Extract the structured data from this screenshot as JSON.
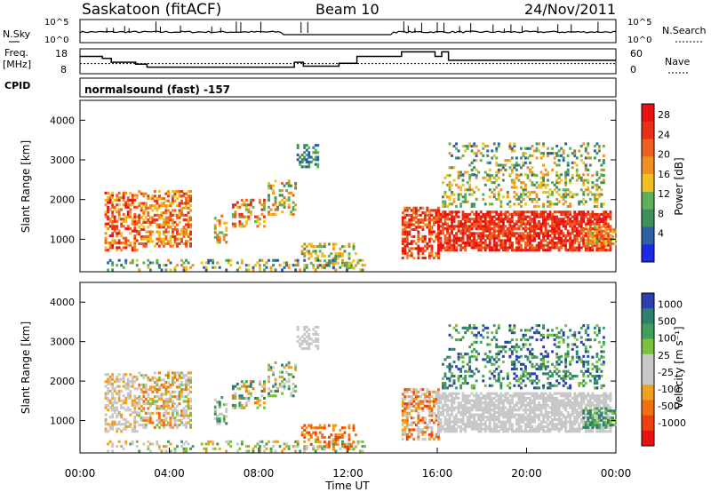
{
  "header": {
    "station": "Saskatoon (fitACF)",
    "beam": "Beam 10",
    "date": "24/Nov/2011"
  },
  "panel_labels": {
    "nsky": "N.Sky",
    "nsearch": "N.Search",
    "freq_line1": "Freq.",
    "freq_line2": "[MHz]",
    "nave": "Nave",
    "cpid": "CPID",
    "cpid_value": "normalsound (fast) -157"
  },
  "colors": {
    "power_scale": [
      "#1a2be6",
      "#2b5fa6",
      "#3f8f5f",
      "#5fb05a",
      "#f0c020",
      "#f09020",
      "#f06020",
      "#e83018",
      "#e81010"
    ],
    "velocity_scale": [
      "#e81010",
      "#f04010",
      "#f07010",
      "#f0a020",
      "#c8c8c8",
      "#c8c8c8",
      "#7cc040",
      "#3f9f5f",
      "#2f7f6f",
      "#2a3fb0"
    ],
    "grey": "#c8c8c8"
  },
  "chart_data": [
    {
      "type": "line",
      "name": "noise",
      "left_scale_ticks": [
        "10^5",
        "10^0"
      ],
      "right_scale_ticks": [
        "10^5",
        "10^0"
      ],
      "left_label": "N.Sky",
      "right_label": "N.Search",
      "xlim": [
        0,
        24
      ]
    },
    {
      "type": "line",
      "name": "frequency-nave",
      "left_ticks": [
        "18",
        "8"
      ],
      "right_ticks": [
        "60",
        "0"
      ],
      "freq_steps": [
        [
          0.0,
          15.5
        ],
        [
          1.0,
          15.5
        ],
        [
          1.0,
          14.5
        ],
        [
          1.4,
          14.5
        ],
        [
          1.4,
          12.5
        ],
        [
          2.5,
          12.5
        ],
        [
          2.5,
          11.5
        ],
        [
          3.0,
          11.5
        ],
        [
          3.0,
          10.0
        ],
        [
          9.6,
          10.0
        ],
        [
          9.6,
          12.5
        ],
        [
          10.0,
          12.5
        ],
        [
          10.0,
          10.5
        ],
        [
          11.6,
          10.5
        ],
        [
          11.6,
          12.0
        ],
        [
          12.4,
          12.0
        ],
        [
          12.4,
          15.5
        ],
        [
          14.4,
          15.5
        ],
        [
          14.4,
          17.8
        ],
        [
          15.9,
          17.8
        ],
        [
          15.9,
          15.5
        ],
        [
          16.2,
          15.5
        ],
        [
          16.2,
          17.8
        ],
        [
          16.5,
          17.8
        ],
        [
          16.5,
          13.5
        ],
        [
          24.0,
          13.5
        ]
      ],
      "nave_level": 11.8,
      "xlim": [
        0,
        24
      ]
    },
    {
      "type": "heatmap",
      "name": "power",
      "ylabel": "Slant Range [km]",
      "yticks": [
        1000,
        2000,
        3000,
        4000
      ],
      "ylim": [
        180,
        4500
      ],
      "xlim": [
        0,
        24
      ],
      "colorbar_label": "Power [dB]",
      "colorbar_ticks": [
        "28",
        "24",
        "20",
        "16",
        "12",
        "8",
        "4"
      ]
    },
    {
      "type": "heatmap",
      "name": "velocity",
      "ylabel": "Slant Range [km]",
      "yticks": [
        1000,
        2000,
        3000,
        4000
      ],
      "ylim": [
        180,
        4500
      ],
      "xlim": [
        0,
        24
      ],
      "xticks": [
        "00:00",
        "04:00",
        "08:00",
        "12:00",
        "16:00",
        "20:00",
        "00:00"
      ],
      "xlabel": "Time UT",
      "colorbar_label": "Velocity [m s⁻¹]",
      "colorbar_ticks": [
        "1000",
        "500",
        "100",
        "25",
        "-25",
        "-100",
        "-500",
        "-1000"
      ]
    }
  ]
}
